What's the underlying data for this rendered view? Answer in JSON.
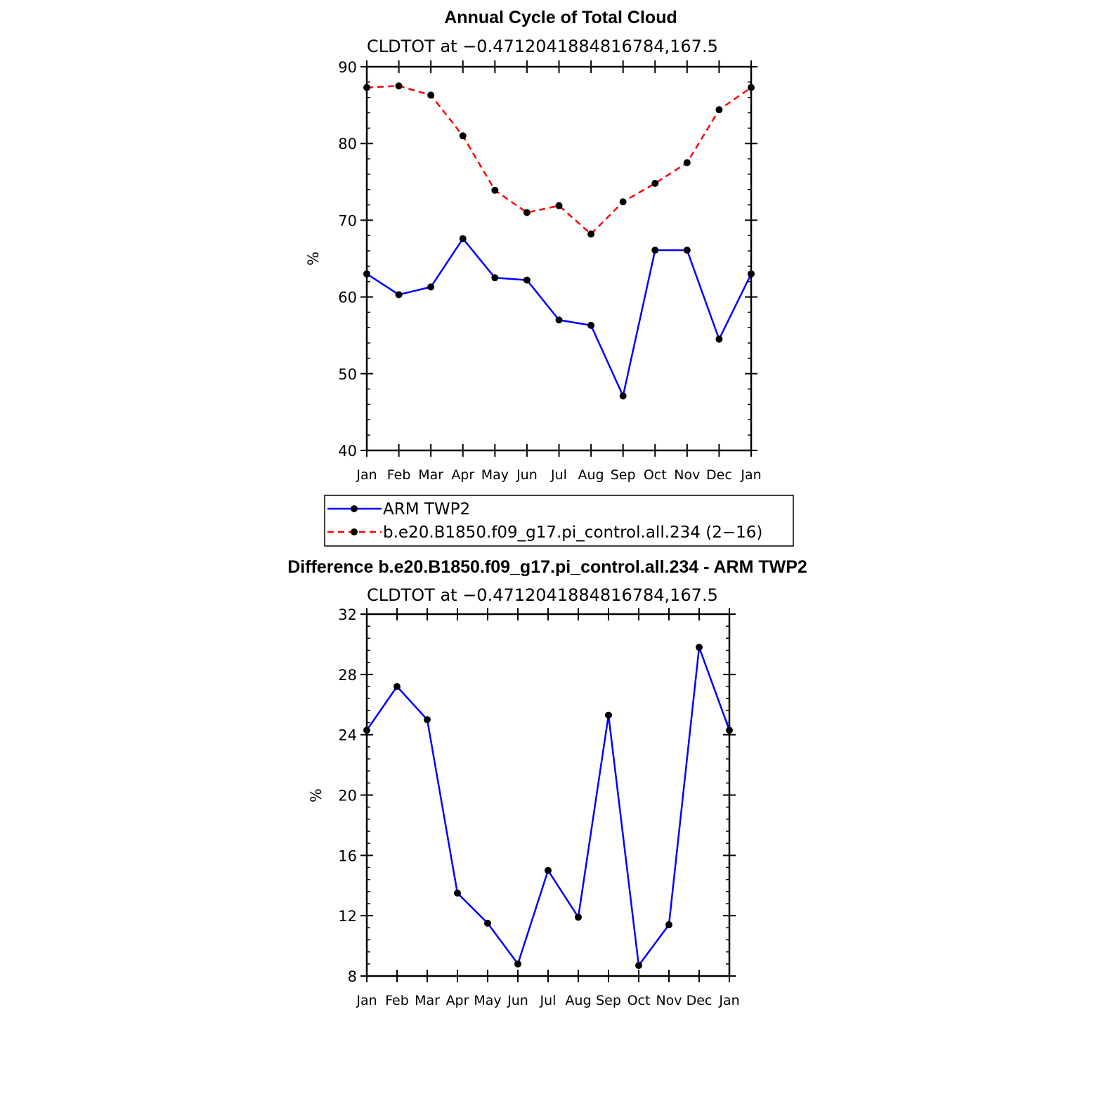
{
  "chart_data": [
    {
      "type": "line",
      "title": "Annual Cycle of Total Cloud",
      "subtitle": "CLDTOT at −0.4712041884816784,167.5",
      "ylabel": "%",
      "xlabel": "",
      "ylim": [
        40,
        90
      ],
      "yticks": [
        "40",
        "50",
        "60",
        "70",
        "80",
        "90"
      ],
      "categories": [
        "Jan",
        "Feb",
        "Mar",
        "Apr",
        "May",
        "Jun",
        "Jul",
        "Aug",
        "Sep",
        "Oct",
        "Nov",
        "Dec",
        "Jan"
      ],
      "series": [
        {
          "name": "ARM TWP2",
          "color": "#0000ff",
          "dash": "solid",
          "values": [
            63.0,
            60.3,
            61.3,
            67.6,
            62.5,
            62.2,
            57.0,
            56.3,
            47.1,
            66.1,
            66.1,
            54.5,
            63.0
          ]
        },
        {
          "name": "b.e20.B1850.f09_g17.pi_control.all.234 (2−16)",
          "color": "#ff0000",
          "dash": "dashed",
          "values": [
            87.3,
            87.5,
            86.3,
            81.0,
            73.9,
            71.0,
            71.9,
            68.2,
            72.4,
            74.8,
            77.5,
            84.4,
            87.3
          ]
        }
      ],
      "legend": {
        "placement": "below",
        "entries": [
          "ARM TWP2",
          "b.e20.B1850.f09_g17.pi_control.all.234 (2−16)"
        ]
      }
    },
    {
      "type": "line",
      "title": "Difference b.e20.B1850.f09_g17.pi_control.all.234 - ARM TWP2",
      "subtitle": "CLDTOT at −0.4712041884816784,167.5",
      "ylabel": "%",
      "xlabel": "",
      "ylim": [
        8,
        32
      ],
      "yticks": [
        "8",
        "12",
        "16",
        "20",
        "24",
        "28",
        "32"
      ],
      "categories": [
        "Jan",
        "Feb",
        "Mar",
        "Apr",
        "May",
        "Jun",
        "Jul",
        "Aug",
        "Sep",
        "Oct",
        "Nov",
        "Dec",
        "Jan"
      ],
      "series": [
        {
          "name": "Difference",
          "color": "#0000ff",
          "dash": "solid",
          "values": [
            24.3,
            27.2,
            25.0,
            13.5,
            11.5,
            8.8,
            15.0,
            11.9,
            25.3,
            8.7,
            11.4,
            29.8,
            24.3
          ]
        }
      ]
    }
  ]
}
